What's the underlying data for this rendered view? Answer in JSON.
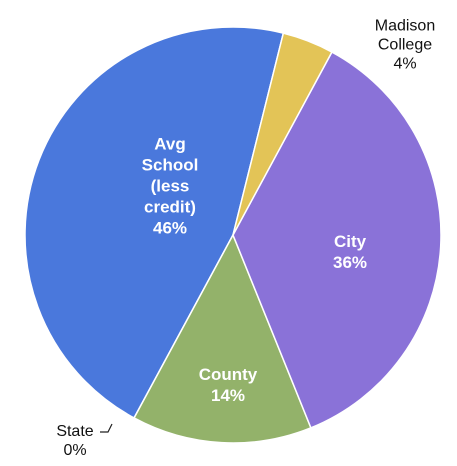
{
  "chart_data": {
    "type": "pie",
    "categories": [
      "Madison College",
      "City",
      "County",
      "State",
      "Avg School (less credit)"
    ],
    "values": [
      4,
      36,
      14,
      0,
      46
    ],
    "value_labels": [
      "4%",
      "36%",
      "14%",
      "0%",
      "46%"
    ],
    "colors": [
      "#e3c457",
      "#8a72d8",
      "#93b26a",
      "#9a9a9a",
      "#4a78dc"
    ]
  }
}
